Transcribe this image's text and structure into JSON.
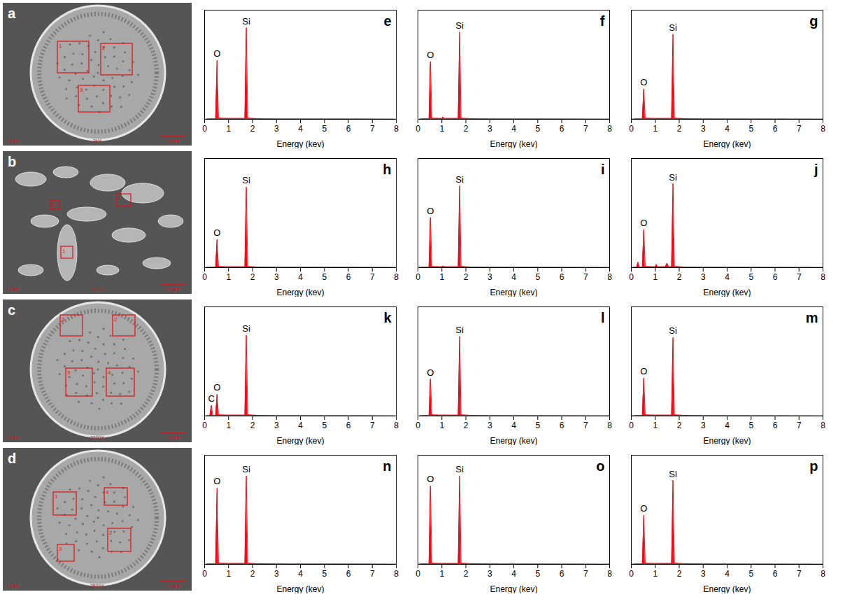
{
  "chart_data": [
    {
      "type": "area",
      "panel": "e",
      "xlabel": "Energy (kev)",
      "color": "#e8101a",
      "grid": false,
      "tick_labels": "x",
      "xlim": [
        0,
        8
      ],
      "xticks": [
        0,
        1,
        2,
        3,
        4,
        5,
        6,
        7,
        8
      ],
      "ylim": [
        0,
        100
      ],
      "x": [
        0,
        0.2,
        0.22,
        0.28,
        0.34,
        0.46,
        0.52,
        0.58,
        0.9,
        1.0,
        1.04,
        1.1,
        1.42,
        1.49,
        1.56,
        1.68,
        1.74,
        1.8,
        2.2,
        3,
        8
      ],
      "values": [
        0,
        0.5,
        0.5,
        0.5,
        0.5,
        0.5,
        54,
        1,
        0.8,
        0.8,
        0.8,
        0.8,
        0.8,
        0.8,
        0.8,
        0.8,
        84,
        1,
        0.6,
        0.4,
        0.2
      ],
      "annotations": [
        {
          "text": "O",
          "x": 0.52,
          "y": 54
        },
        {
          "text": "Si",
          "x": 1.74,
          "y": 84
        }
      ]
    },
    {
      "type": "area",
      "panel": "f",
      "xlabel": "Energy (kev)",
      "color": "#e8101a",
      "grid": false,
      "tick_labels": "x",
      "xlim": [
        0,
        8
      ],
      "xticks": [
        0,
        1,
        2,
        3,
        4,
        5,
        6,
        7,
        8
      ],
      "ylim": [
        0,
        100
      ],
      "x": [
        0,
        0.2,
        0.22,
        0.28,
        0.34,
        0.46,
        0.52,
        0.58,
        0.9,
        1.0,
        1.04,
        1.1,
        1.42,
        1.49,
        1.56,
        1.68,
        1.74,
        1.8,
        2.2,
        3,
        8
      ],
      "values": [
        0,
        0.5,
        0.5,
        0.5,
        0.5,
        0.5,
        53,
        1,
        0.8,
        0.8,
        2,
        0.8,
        0.8,
        0.8,
        0.8,
        0.8,
        80,
        1,
        0.6,
        0.4,
        0.2
      ],
      "annotations": [
        {
          "text": "O",
          "x": 0.52,
          "y": 53
        },
        {
          "text": "Si",
          "x": 1.74,
          "y": 80
        }
      ]
    },
    {
      "type": "area",
      "panel": "g",
      "xlabel": "Energy (kev)",
      "color": "#e8101a",
      "grid": false,
      "tick_labels": "x",
      "xlim": [
        0,
        8
      ],
      "xticks": [
        0,
        1,
        2,
        3,
        4,
        5,
        6,
        7,
        8
      ],
      "ylim": [
        0,
        100
      ],
      "x": [
        0,
        0.2,
        0.22,
        0.28,
        0.34,
        0.46,
        0.52,
        0.58,
        0.9,
        1.0,
        1.04,
        1.1,
        1.42,
        1.49,
        1.56,
        1.68,
        1.74,
        1.8,
        2.2,
        3,
        8
      ],
      "values": [
        0,
        0.5,
        0.5,
        0.5,
        0.5,
        0.5,
        28,
        1,
        0.8,
        0.8,
        0.8,
        0.8,
        0.8,
        0.8,
        0.8,
        0.8,
        78,
        1,
        0.6,
        0.4,
        0.2
      ],
      "annotations": [
        {
          "text": "O",
          "x": 0.52,
          "y": 28
        },
        {
          "text": "Si",
          "x": 1.74,
          "y": 78
        }
      ]
    },
    {
      "type": "area",
      "panel": "h",
      "xlabel": "Energy (kev)",
      "color": "#e8101a",
      "grid": false,
      "tick_labels": "x",
      "xlim": [
        0,
        8
      ],
      "xticks": [
        0,
        1,
        2,
        3,
        4,
        5,
        6,
        7,
        8
      ],
      "ylim": [
        0,
        100
      ],
      "x": [
        0,
        0.2,
        0.22,
        0.28,
        0.34,
        0.46,
        0.52,
        0.58,
        0.9,
        1.0,
        1.04,
        1.1,
        1.42,
        1.49,
        1.56,
        1.68,
        1.74,
        1.8,
        2.2,
        3,
        8
      ],
      "values": [
        0,
        0.5,
        0.5,
        0.5,
        0.5,
        0.5,
        26,
        1,
        0.8,
        0.8,
        0.8,
        0.8,
        0.8,
        0.8,
        0.8,
        0.8,
        74,
        1,
        0.6,
        0.4,
        0.2
      ],
      "annotations": [
        {
          "text": "O",
          "x": 0.52,
          "y": 26
        },
        {
          "text": "Si",
          "x": 1.74,
          "y": 74
        }
      ]
    },
    {
      "type": "area",
      "panel": "i",
      "xlabel": "Energy (kev)",
      "color": "#e8101a",
      "grid": false,
      "tick_labels": "x",
      "xlim": [
        0,
        8
      ],
      "xticks": [
        0,
        1,
        2,
        3,
        4,
        5,
        6,
        7,
        8
      ],
      "ylim": [
        0,
        100
      ],
      "x": [
        0,
        0.2,
        0.22,
        0.28,
        0.34,
        0.46,
        0.52,
        0.58,
        0.9,
        1.0,
        1.04,
        1.1,
        1.42,
        1.49,
        1.56,
        1.68,
        1.74,
        1.8,
        2.2,
        3,
        8
      ],
      "values": [
        0,
        0.5,
        0.5,
        0.5,
        0.5,
        0.5,
        46,
        1,
        0.8,
        0.8,
        1.5,
        0.8,
        0.8,
        0.8,
        0.8,
        0.8,
        75,
        1,
        0.6,
        0.4,
        0.2
      ],
      "annotations": [
        {
          "text": "O",
          "x": 0.52,
          "y": 46
        },
        {
          "text": "Si",
          "x": 1.74,
          "y": 75
        }
      ]
    },
    {
      "type": "area",
      "panel": "j",
      "xlabel": "Energy (kev)",
      "color": "#e8101a",
      "grid": false,
      "tick_labels": "x",
      "xlim": [
        0,
        8
      ],
      "xticks": [
        0,
        1,
        2,
        3,
        4,
        5,
        6,
        7,
        8
      ],
      "ylim": [
        0,
        100
      ],
      "x": [
        0,
        0.2,
        0.22,
        0.28,
        0.34,
        0.46,
        0.52,
        0.58,
        0.9,
        1.0,
        1.04,
        1.1,
        1.42,
        1.49,
        1.56,
        1.68,
        1.74,
        1.8,
        2.2,
        3,
        8
      ],
      "values": [
        0,
        0.5,
        0.5,
        5,
        0.5,
        0.5,
        35,
        1,
        0.8,
        0.8,
        3,
        0.8,
        0.8,
        4,
        0.8,
        0.8,
        77,
        1,
        0.6,
        0.4,
        0.2
      ],
      "annotations": [
        {
          "text": "O",
          "x": 0.52,
          "y": 35
        },
        {
          "text": "Si",
          "x": 1.74,
          "y": 77
        }
      ]
    },
    {
      "type": "area",
      "panel": "k",
      "xlabel": "Energy (kev)",
      "color": "#e8101a",
      "grid": false,
      "tick_labels": "x",
      "xlim": [
        0,
        8
      ],
      "xticks": [
        0,
        1,
        2,
        3,
        4,
        5,
        6,
        7,
        8
      ],
      "ylim": [
        0,
        100
      ],
      "x": [
        0,
        0.2,
        0.22,
        0.28,
        0.34,
        0.46,
        0.52,
        0.58,
        0.9,
        1.0,
        1.04,
        1.1,
        1.42,
        1.49,
        1.56,
        1.68,
        1.74,
        1.8,
        2.2,
        3,
        8
      ],
      "values": [
        0,
        0.5,
        0.5,
        10,
        0.5,
        0.5,
        20,
        1,
        0.8,
        0.8,
        0.8,
        0.8,
        0.8,
        0.8,
        0.8,
        0.8,
        74,
        1,
        0.6,
        0.4,
        0.2
      ],
      "annotations": [
        {
          "text": "C",
          "x": 0.28,
          "y": 10
        },
        {
          "text": "O",
          "x": 0.52,
          "y": 20
        },
        {
          "text": "Si",
          "x": 1.74,
          "y": 74
        }
      ]
    },
    {
      "type": "area",
      "panel": "l",
      "xlabel": "Energy (kev)",
      "color": "#e8101a",
      "grid": false,
      "tick_labels": "x",
      "xlim": [
        0,
        8
      ],
      "xticks": [
        0,
        1,
        2,
        3,
        4,
        5,
        6,
        7,
        8
      ],
      "ylim": [
        0,
        100
      ],
      "x": [
        0,
        0.2,
        0.22,
        0.28,
        0.34,
        0.46,
        0.52,
        0.58,
        0.9,
        1.0,
        1.04,
        1.1,
        1.42,
        1.49,
        1.56,
        1.68,
        1.74,
        1.8,
        2.2,
        3,
        8
      ],
      "values": [
        0,
        0.5,
        0.5,
        0.5,
        0.5,
        0.5,
        34,
        1,
        0.8,
        0.8,
        0.8,
        0.8,
        0.8,
        0.8,
        0.8,
        0.8,
        73,
        1,
        0.6,
        0.4,
        0.2
      ],
      "annotations": [
        {
          "text": "O",
          "x": 0.52,
          "y": 34
        },
        {
          "text": "Si",
          "x": 1.74,
          "y": 73
        }
      ]
    },
    {
      "type": "area",
      "panel": "m",
      "xlabel": "Energy (kev)",
      "color": "#e8101a",
      "grid": false,
      "tick_labels": "x",
      "xlim": [
        0,
        8
      ],
      "xticks": [
        0,
        1,
        2,
        3,
        4,
        5,
        6,
        7,
        8
      ],
      "ylim": [
        0,
        100
      ],
      "x": [
        0,
        0.2,
        0.22,
        0.28,
        0.34,
        0.46,
        0.52,
        0.58,
        0.9,
        1.0,
        1.04,
        1.1,
        1.42,
        1.49,
        1.56,
        1.68,
        1.74,
        1.8,
        2.2,
        3,
        8
      ],
      "values": [
        0,
        0.5,
        0.5,
        0.5,
        0.5,
        0.5,
        35,
        1,
        0.8,
        0.8,
        0.8,
        0.8,
        0.8,
        0.8,
        0.8,
        0.8,
        72,
        1,
        0.6,
        0.4,
        0.2
      ],
      "annotations": [
        {
          "text": "O",
          "x": 0.52,
          "y": 35
        },
        {
          "text": "Si",
          "x": 1.74,
          "y": 72
        }
      ]
    },
    {
      "type": "area",
      "panel": "n",
      "xlabel": "Energy (kev)",
      "color": "#e8101a",
      "grid": false,
      "tick_labels": "x",
      "xlim": [
        0,
        8
      ],
      "xticks": [
        0,
        1,
        2,
        3,
        4,
        5,
        6,
        7,
        8
      ],
      "ylim": [
        0,
        100
      ],
      "x": [
        0,
        0.2,
        0.22,
        0.28,
        0.34,
        0.46,
        0.52,
        0.58,
        0.9,
        1.0,
        1.04,
        1.1,
        1.42,
        1.49,
        1.56,
        1.68,
        1.74,
        1.8,
        2.2,
        3,
        8
      ],
      "values": [
        0,
        0.5,
        0.5,
        0.5,
        0.5,
        0.5,
        70,
        1,
        0.8,
        0.8,
        0.8,
        0.8,
        0.8,
        0.8,
        0.8,
        0.8,
        81,
        1,
        0.6,
        0.4,
        0.2
      ],
      "annotations": [
        {
          "text": "O",
          "x": 0.52,
          "y": 70
        },
        {
          "text": "Si",
          "x": 1.74,
          "y": 81
        }
      ]
    },
    {
      "type": "area",
      "panel": "o",
      "xlabel": "Energy (kev)",
      "color": "#e8101a",
      "grid": false,
      "tick_labels": "x",
      "xlim": [
        0,
        8
      ],
      "xticks": [
        0,
        1,
        2,
        3,
        4,
        5,
        6,
        7,
        8
      ],
      "ylim": [
        0,
        100
      ],
      "x": [
        0,
        0.2,
        0.22,
        0.28,
        0.34,
        0.46,
        0.52,
        0.58,
        0.9,
        1.0,
        1.04,
        1.1,
        1.42,
        1.49,
        1.56,
        1.68,
        1.74,
        1.8,
        2.2,
        3,
        8
      ],
      "values": [
        0,
        0.5,
        0.5,
        0.5,
        0.5,
        0.5,
        72,
        1,
        0.8,
        0.8,
        0.8,
        0.8,
        0.8,
        0.8,
        0.8,
        0.8,
        81,
        1,
        0.6,
        0.4,
        0.2
      ],
      "annotations": [
        {
          "text": "O",
          "x": 0.52,
          "y": 72
        },
        {
          "text": "Si",
          "x": 1.74,
          "y": 81
        }
      ]
    },
    {
      "type": "area",
      "panel": "p",
      "xlabel": "Energy (kev)",
      "color": "#e8101a",
      "grid": false,
      "tick_labels": "x",
      "xlim": [
        0,
        8
      ],
      "xticks": [
        0,
        1,
        2,
        3,
        4,
        5,
        6,
        7,
        8
      ],
      "ylim": [
        0,
        100
      ],
      "x": [
        0,
        0.2,
        0.22,
        0.28,
        0.34,
        0.46,
        0.52,
        0.58,
        0.9,
        1.0,
        1.04,
        1.1,
        1.42,
        1.49,
        1.56,
        1.68,
        1.74,
        1.8,
        2.2,
        3,
        8
      ],
      "values": [
        0,
        0.5,
        0.5,
        0.5,
        0.5,
        0.5,
        45,
        1,
        0.8,
        0.8,
        0.8,
        0.8,
        0.8,
        0.8,
        0.8,
        0.8,
        77,
        1,
        0.6,
        0.4,
        0.2
      ],
      "annotations": [
        {
          "text": "O",
          "x": 0.52,
          "y": 45
        },
        {
          "text": "Si",
          "x": 1.74,
          "y": 77
        }
      ]
    }
  ],
  "images": [
    {
      "panel": "a",
      "regions": [
        "1",
        "2",
        "3"
      ],
      "footer": [
        "15 kV",
        "2kX",
        "10 µm"
      ]
    },
    {
      "panel": "b",
      "regions": [
        "1",
        "2",
        "3"
      ],
      "footer": [
        "15 kV",
        "1100X",
        "20 µm"
      ]
    },
    {
      "panel": "c",
      "regions": [
        "1",
        "2",
        "3",
        "4"
      ],
      "footer": [
        "15 kV",
        "2200X",
        "10 µm"
      ]
    },
    {
      "panel": "d",
      "regions": [
        "1",
        "2",
        "3",
        "4"
      ],
      "footer": [
        "15 kV",
        "2500X",
        "10 µm"
      ]
    }
  ]
}
